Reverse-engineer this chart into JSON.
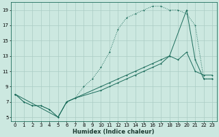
{
  "xlabel": "Humidex (Indice chaleur)",
  "bg_color": "#cce8e0",
  "line_color": "#1a6b5a",
  "grid_color": "#aaccc4",
  "xlim": [
    -0.5,
    23.5
  ],
  "ylim": [
    4.5,
    20.0
  ],
  "xticks": [
    0,
    1,
    2,
    3,
    4,
    5,
    6,
    7,
    8,
    9,
    10,
    11,
    12,
    13,
    14,
    15,
    16,
    17,
    18,
    19,
    20,
    21,
    22,
    23
  ],
  "yticks": [
    5,
    7,
    9,
    11,
    13,
    15,
    17,
    19
  ],
  "line1_x": [
    0,
    1,
    2,
    3,
    4,
    5,
    6,
    7,
    8,
    9,
    10,
    11,
    12,
    13,
    14,
    15,
    16,
    17,
    18,
    19,
    20,
    21,
    22,
    23
  ],
  "line1_y": [
    8,
    7,
    6.5,
    6.5,
    6,
    5,
    7,
    7.5,
    9,
    10,
    11.5,
    13.5,
    16.5,
    18,
    18.5,
    19,
    19.5,
    19.5,
    19,
    19,
    18.5,
    17,
    10,
    10
  ],
  "line2_x": [
    0,
    1,
    2,
    3,
    4,
    5,
    6,
    7,
    10,
    11,
    12,
    13,
    14,
    15,
    16,
    17,
    18,
    20,
    21,
    22,
    23
  ],
  "line2_y": [
    8,
    7,
    6.5,
    6.5,
    6,
    5,
    7,
    7.5,
    9,
    9.5,
    10,
    10.5,
    11,
    11.5,
    12,
    12.5,
    13,
    19,
    12.5,
    10,
    10
  ],
  "line3_x": [
    0,
    5,
    6,
    7,
    10,
    11,
    12,
    13,
    14,
    15,
    16,
    17,
    18,
    19,
    20,
    21,
    22,
    23
  ],
  "line3_y": [
    8,
    5,
    7,
    7.5,
    8.5,
    9,
    9.5,
    10,
    10.5,
    11,
    11.5,
    12,
    13,
    12.5,
    13.5,
    11,
    10.5,
    10.5
  ]
}
